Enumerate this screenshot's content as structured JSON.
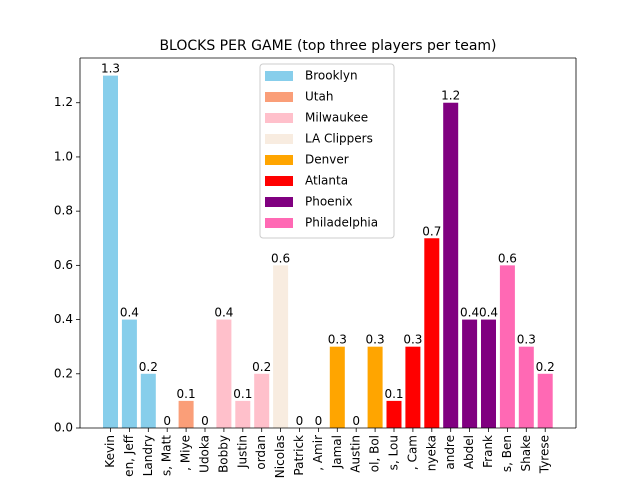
{
  "chart_data": {
    "type": "bar",
    "title": "BLOCKS PER GAME (top three players per team)",
    "xlabel": "",
    "ylabel": "",
    "ylim": [
      0,
      1.365
    ],
    "yticks": [
      "0.0",
      "0.2",
      "0.4",
      "0.6",
      "0.8",
      "1.0",
      "1.2"
    ],
    "grid": false,
    "legend_position": "top-center",
    "legend": [
      {
        "name": "Brooklyn",
        "color": "#87ceeb"
      },
      {
        "name": "Utah",
        "color": "#fa9e78"
      },
      {
        "name": "Milwaukee",
        "color": "#ffc0cb"
      },
      {
        "name": "LA Clippers",
        "color": "#f8ece0"
      },
      {
        "name": "Denver",
        "color": "#ffa500"
      },
      {
        "name": "Atlanta",
        "color": "#ff0000"
      },
      {
        "name": "Phoenix",
        "color": "#800080"
      },
      {
        "name": "Philadelphia",
        "color": "#ff69b4"
      }
    ],
    "categories": [
      "Kevin",
      "en, Jeff",
      "Landry",
      "s, Matt",
      ", Miye",
      "Udoka",
      "Bobby",
      "Justin",
      "ordan",
      "Nicolas",
      "Patrick",
      ", Amir",
      "Jamal",
      "Austin",
      "ol, Bol",
      "s, Lou",
      ", Cam",
      "nyeka",
      "andre",
      "Abdel",
      "Frank",
      "s, Ben",
      "Shake",
      "Tyrese"
    ],
    "values": [
      1.3,
      0.4,
      0.2,
      0,
      0.1,
      0,
      0.4,
      0.1,
      0.2,
      0.6,
      0,
      0,
      0.3,
      0,
      0.3,
      0.1,
      0.3,
      0.7,
      1.2,
      0.4,
      0.4,
      0.6,
      0.3,
      0.2
    ],
    "value_labels": [
      "1.3",
      "0.4",
      "0.2",
      "0",
      "0.1",
      "0",
      "0.4",
      "0.1",
      "0.2",
      "0.6",
      "0",
      "0",
      "0.3",
      "0",
      "0.3",
      "0.1",
      "0.3",
      "0.7",
      "1.2",
      "0.4",
      "0.4",
      "0.6",
      "0.3",
      "0.2"
    ],
    "bar_teams": [
      "Brooklyn",
      "Brooklyn",
      "Brooklyn",
      "Utah",
      "Utah",
      "Utah",
      "Milwaukee",
      "Milwaukee",
      "Milwaukee",
      "LA Clippers",
      "LA Clippers",
      "LA Clippers",
      "Denver",
      "Denver",
      "Denver",
      "Atlanta",
      "Atlanta",
      "Atlanta",
      "Phoenix",
      "Phoenix",
      "Phoenix",
      "Philadelphia",
      "Philadelphia",
      "Philadelphia"
    ]
  }
}
